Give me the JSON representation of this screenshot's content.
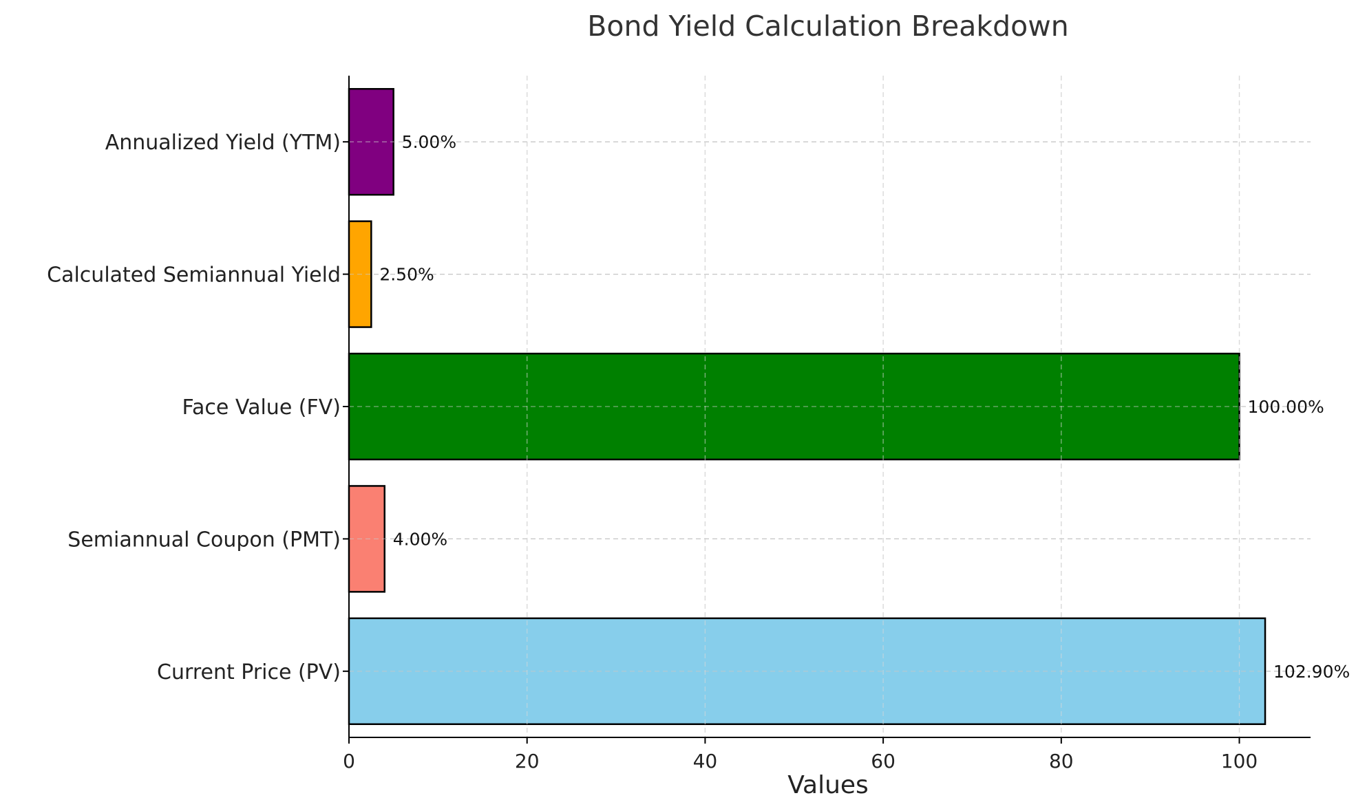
{
  "chart_data": {
    "type": "bar",
    "orientation": "horizontal",
    "title": "Bond Yield Calculation Breakdown",
    "xlabel": "Values",
    "ylabel": "",
    "xlim": [
      0,
      108
    ],
    "xticks": [
      0,
      20,
      40,
      60,
      80,
      100
    ],
    "grid": true,
    "categories": [
      "Current Price (PV)",
      "Semiannual Coupon (PMT)",
      "Face Value (FV)",
      "Calculated Semiannual Yield",
      "Annualized Yield (YTM)"
    ],
    "values": [
      102.9,
      4.0,
      100.0,
      2.5,
      5.0
    ],
    "data_labels": [
      "102.90%",
      "4.00%",
      "100.00%",
      "2.50%",
      "5.00%"
    ],
    "colors": [
      "#87ceeb",
      "#fa8072",
      "#008000",
      "#ffa500",
      "#800080"
    ]
  }
}
